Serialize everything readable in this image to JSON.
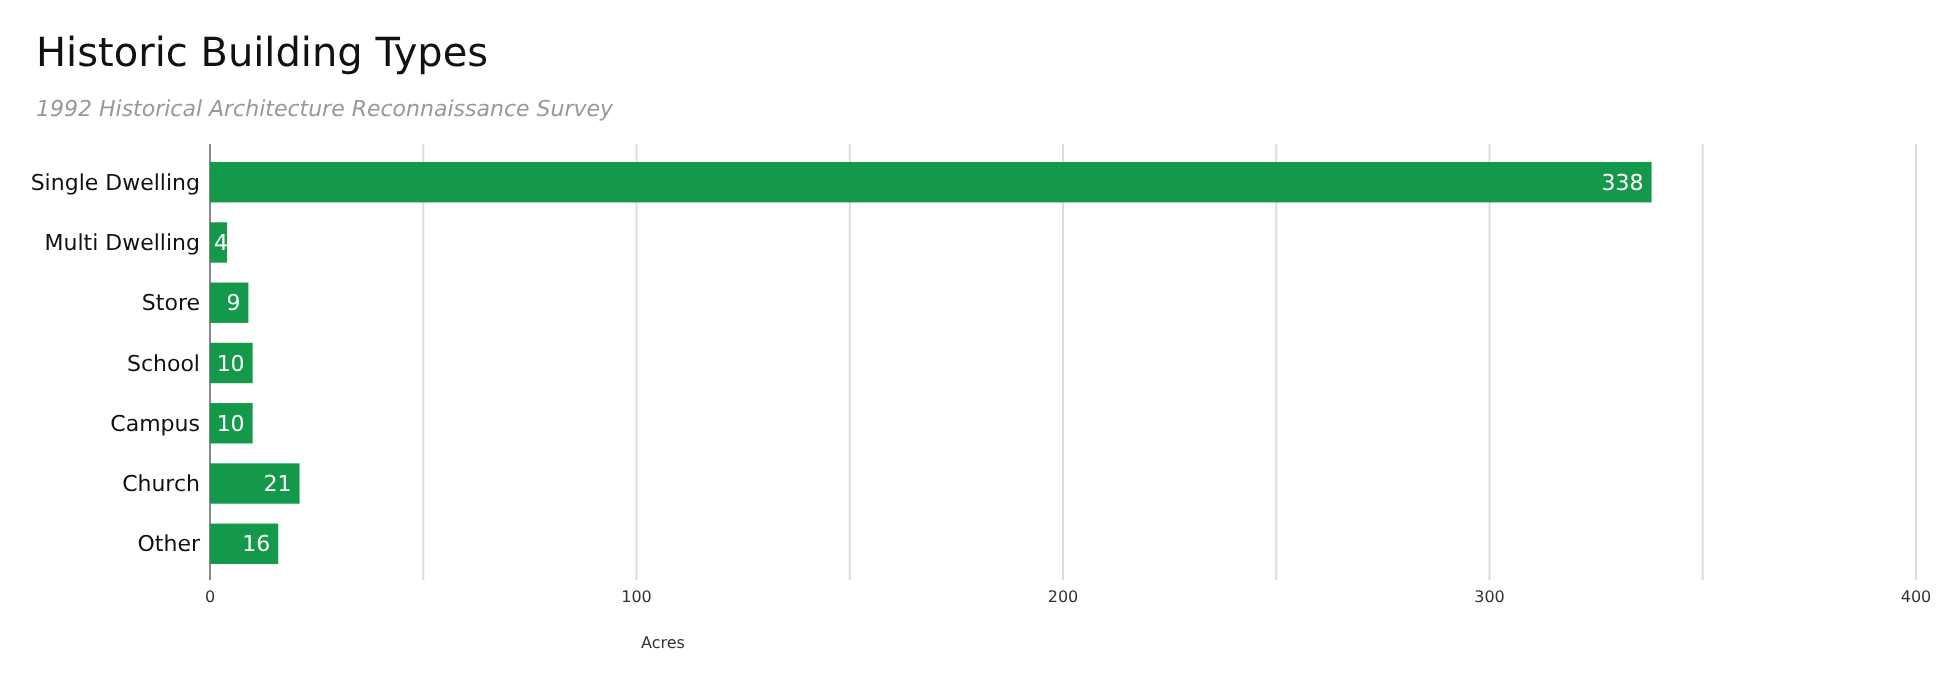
{
  "chart_data": {
    "type": "bar",
    "orientation": "horizontal",
    "title": "Historic Building Types",
    "subtitle": "1992 Historical Architecture Reconnaissance Survey",
    "xlabel": "Acres",
    "categories": [
      "Single Dwelling",
      "Multi Dwelling",
      "Store",
      "School",
      "Campus",
      "Church",
      "Other"
    ],
    "values": [
      338,
      4,
      9,
      10,
      10,
      21,
      16
    ],
    "color": "#14994a",
    "data_labels": true,
    "grid": "x",
    "xlim": [
      0,
      400
    ],
    "xticks": [
      0,
      {
        "value": 50,
        "label": null
      },
      100,
      {
        "value": 150,
        "label": null
      },
      200,
      {
        "value": 250,
        "label": null
      },
      300,
      {
        "value": 350,
        "label": null
      },
      400
    ]
  }
}
